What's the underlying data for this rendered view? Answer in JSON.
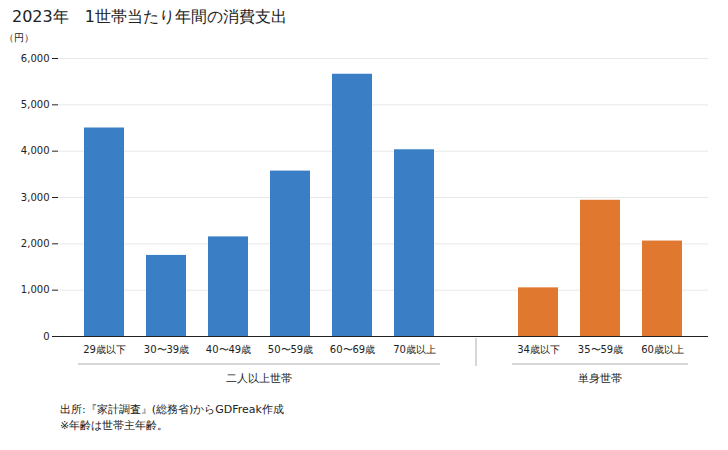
{
  "chart_data": {
    "type": "bar",
    "title": "2023年　1世帯当たり年間の消費支出",
    "ylabel": "（円）",
    "groups": [
      {
        "label": "二人以上世帯",
        "color": "#3A7EC6",
        "categories": [
          "29歳以下",
          "30〜39歳",
          "40〜49歳",
          "50〜59歳",
          "60〜69歳",
          "70歳以上"
        ],
        "values": [
          4500,
          1750,
          2150,
          3570,
          5660,
          4030
        ]
      },
      {
        "label": "単身世帯",
        "color": "#E07830",
        "categories": [
          "34歳以下",
          "35〜59歳",
          "60歳以上"
        ],
        "values": [
          1050,
          2940,
          2060
        ]
      }
    ],
    "ylim": [
      0,
      6000
    ],
    "yticks": [
      0,
      {
        "value": 1000,
        "label": "1,000"
      },
      {
        "value": 2000,
        "label": "2,000"
      },
      {
        "value": 3000,
        "label": "3,000"
      },
      {
        "value": 4000,
        "label": "4,000"
      },
      {
        "value": 5000,
        "label": "5,000"
      },
      {
        "value": 6000,
        "label": "6,000"
      }
    ],
    "grid": true,
    "source": "出所:『家計調査』(総務省)からGDFreak作成",
    "note": "※年齢は世帯主年齢。"
  }
}
